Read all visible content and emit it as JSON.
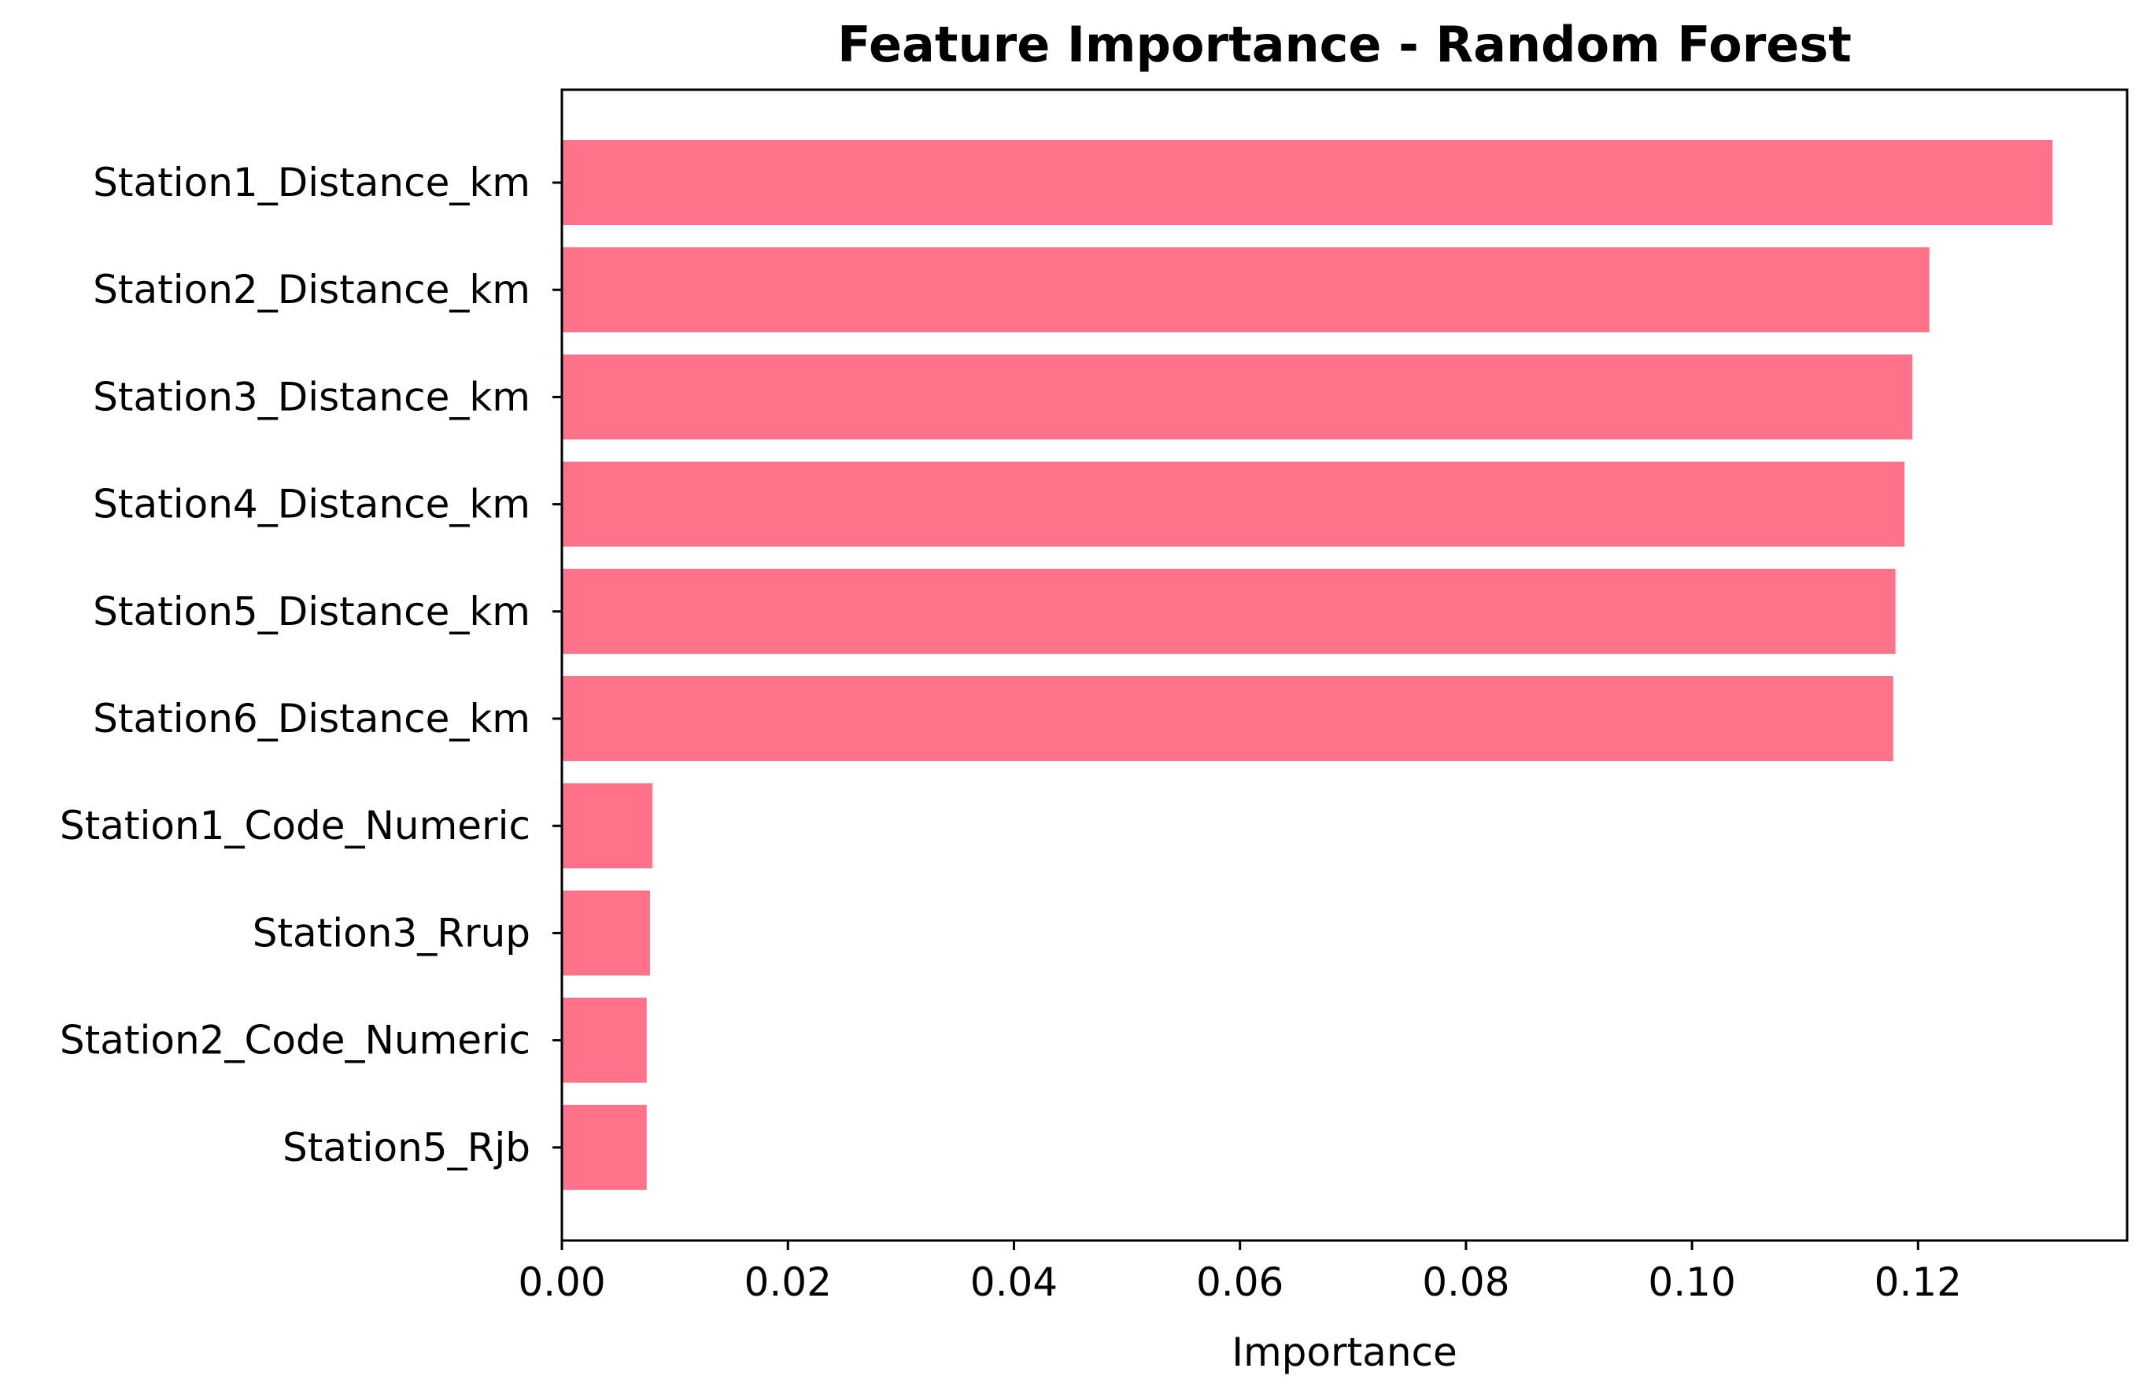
{
  "chart_data": {
    "type": "bar",
    "orientation": "horizontal",
    "title": "Feature Importance - Random Forest",
    "xlabel": "Importance",
    "ylabel": "",
    "bar_color": "#ff7289",
    "xlim": [
      0,
      0.1385
    ],
    "xticks": [
      0.0,
      0.02,
      0.04,
      0.06,
      0.08,
      0.1,
      0.12
    ],
    "xtick_labels": [
      "0.00",
      "0.02",
      "0.04",
      "0.06",
      "0.08",
      "0.10",
      "0.12"
    ],
    "grid": false,
    "legend": "none",
    "categories": [
      "Station1_Distance_km",
      "Station2_Distance_km",
      "Station3_Distance_km",
      "Station4_Distance_km",
      "Station5_Distance_km",
      "Station6_Distance_km",
      "Station1_Code_Numeric",
      "Station3_Rrup",
      "Station2_Code_Numeric",
      "Station5_Rjb"
    ],
    "values": [
      0.1319,
      0.121,
      0.1195,
      0.1188,
      0.118,
      0.1178,
      0.008,
      0.0078,
      0.0075,
      0.0075
    ]
  }
}
